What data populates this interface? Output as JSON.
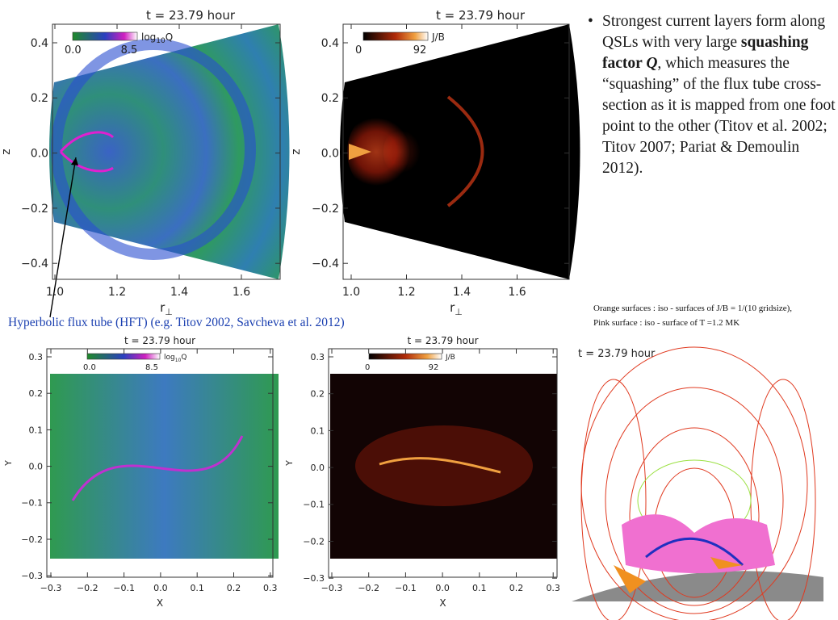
{
  "bullet": [
    "Strongest current layers form along QSLs with very large ",
    "squashing factor ",
    "Q",
    ", which measures the “squashing” of the flux tube cross-section as it is mapped from one foot point to the other (Titov et al. 2002; Titov 2007; Pariat & Demoulin 2012)."
  ],
  "annotation": "Hyperbolic flux tube (HFT) (e.g. Titov 2002, Savcheva et al.  2012)",
  "caption": [
    "Orange surfaces :  iso - surfaces of J/B  =  1/(10 gridsize),",
    "Pink surface :  iso - surface of T =1.2 MK"
  ],
  "render_title": "t = 23.79 hour",
  "panels": [
    {
      "title": "t = 23.79 hour",
      "colorbar": [
        "log",
        "10",
        "Q"
      ],
      "cmin": "0.0",
      "cmax": "8.5",
      "yticks": [
        "0.4",
        "0.2",
        "0.0",
        "−0.2",
        "−0.4"
      ],
      "xticks": [
        "1.0",
        "1.2",
        "1.4",
        "1.6"
      ],
      "xlabel": [
        "r",
        "⊥"
      ],
      "ylabel": "z"
    },
    {
      "title": "t = 23.79 hour",
      "colorbar": [
        "J/B"
      ],
      "cmin": "0",
      "cmax": "92",
      "yticks": [
        "0.4",
        "0.2",
        "0.0",
        "−0.2",
        "−0.4"
      ],
      "xticks": [
        "1.0",
        "1.2",
        "1.4",
        "1.6"
      ],
      "xlabel": [
        "r",
        "⊥"
      ],
      "ylabel": "z"
    },
    {
      "title": "t = 23.79 hour",
      "colorbar": [
        "log",
        "10",
        "Q"
      ],
      "cmin": "0.0",
      "cmax": "8.5",
      "yticks": [
        "0.3",
        "0.2",
        "0.1",
        "0.0",
        "−0.1",
        "−0.2",
        "−0.3"
      ],
      "xticks": [
        "−0.3",
        "−0.2",
        "−0.1",
        "0.0",
        "0.1",
        "0.2",
        "0.3"
      ],
      "xlabel": [
        "X"
      ],
      "ylabel": "Y"
    },
    {
      "title": "t = 23.79 hour",
      "colorbar": [
        "J/B"
      ],
      "cmin": "0",
      "cmax": "92",
      "yticks": [
        "0.3",
        "0.2",
        "0.1",
        "0.0",
        "−0.1",
        "−0.2",
        "−0.3"
      ],
      "xticks": [
        "−0.3",
        "−0.2",
        "−0.1",
        "0.0",
        "0.1",
        "0.2",
        "0.3"
      ],
      "xlabel": [
        "X"
      ],
      "ylabel": "Y"
    }
  ]
}
